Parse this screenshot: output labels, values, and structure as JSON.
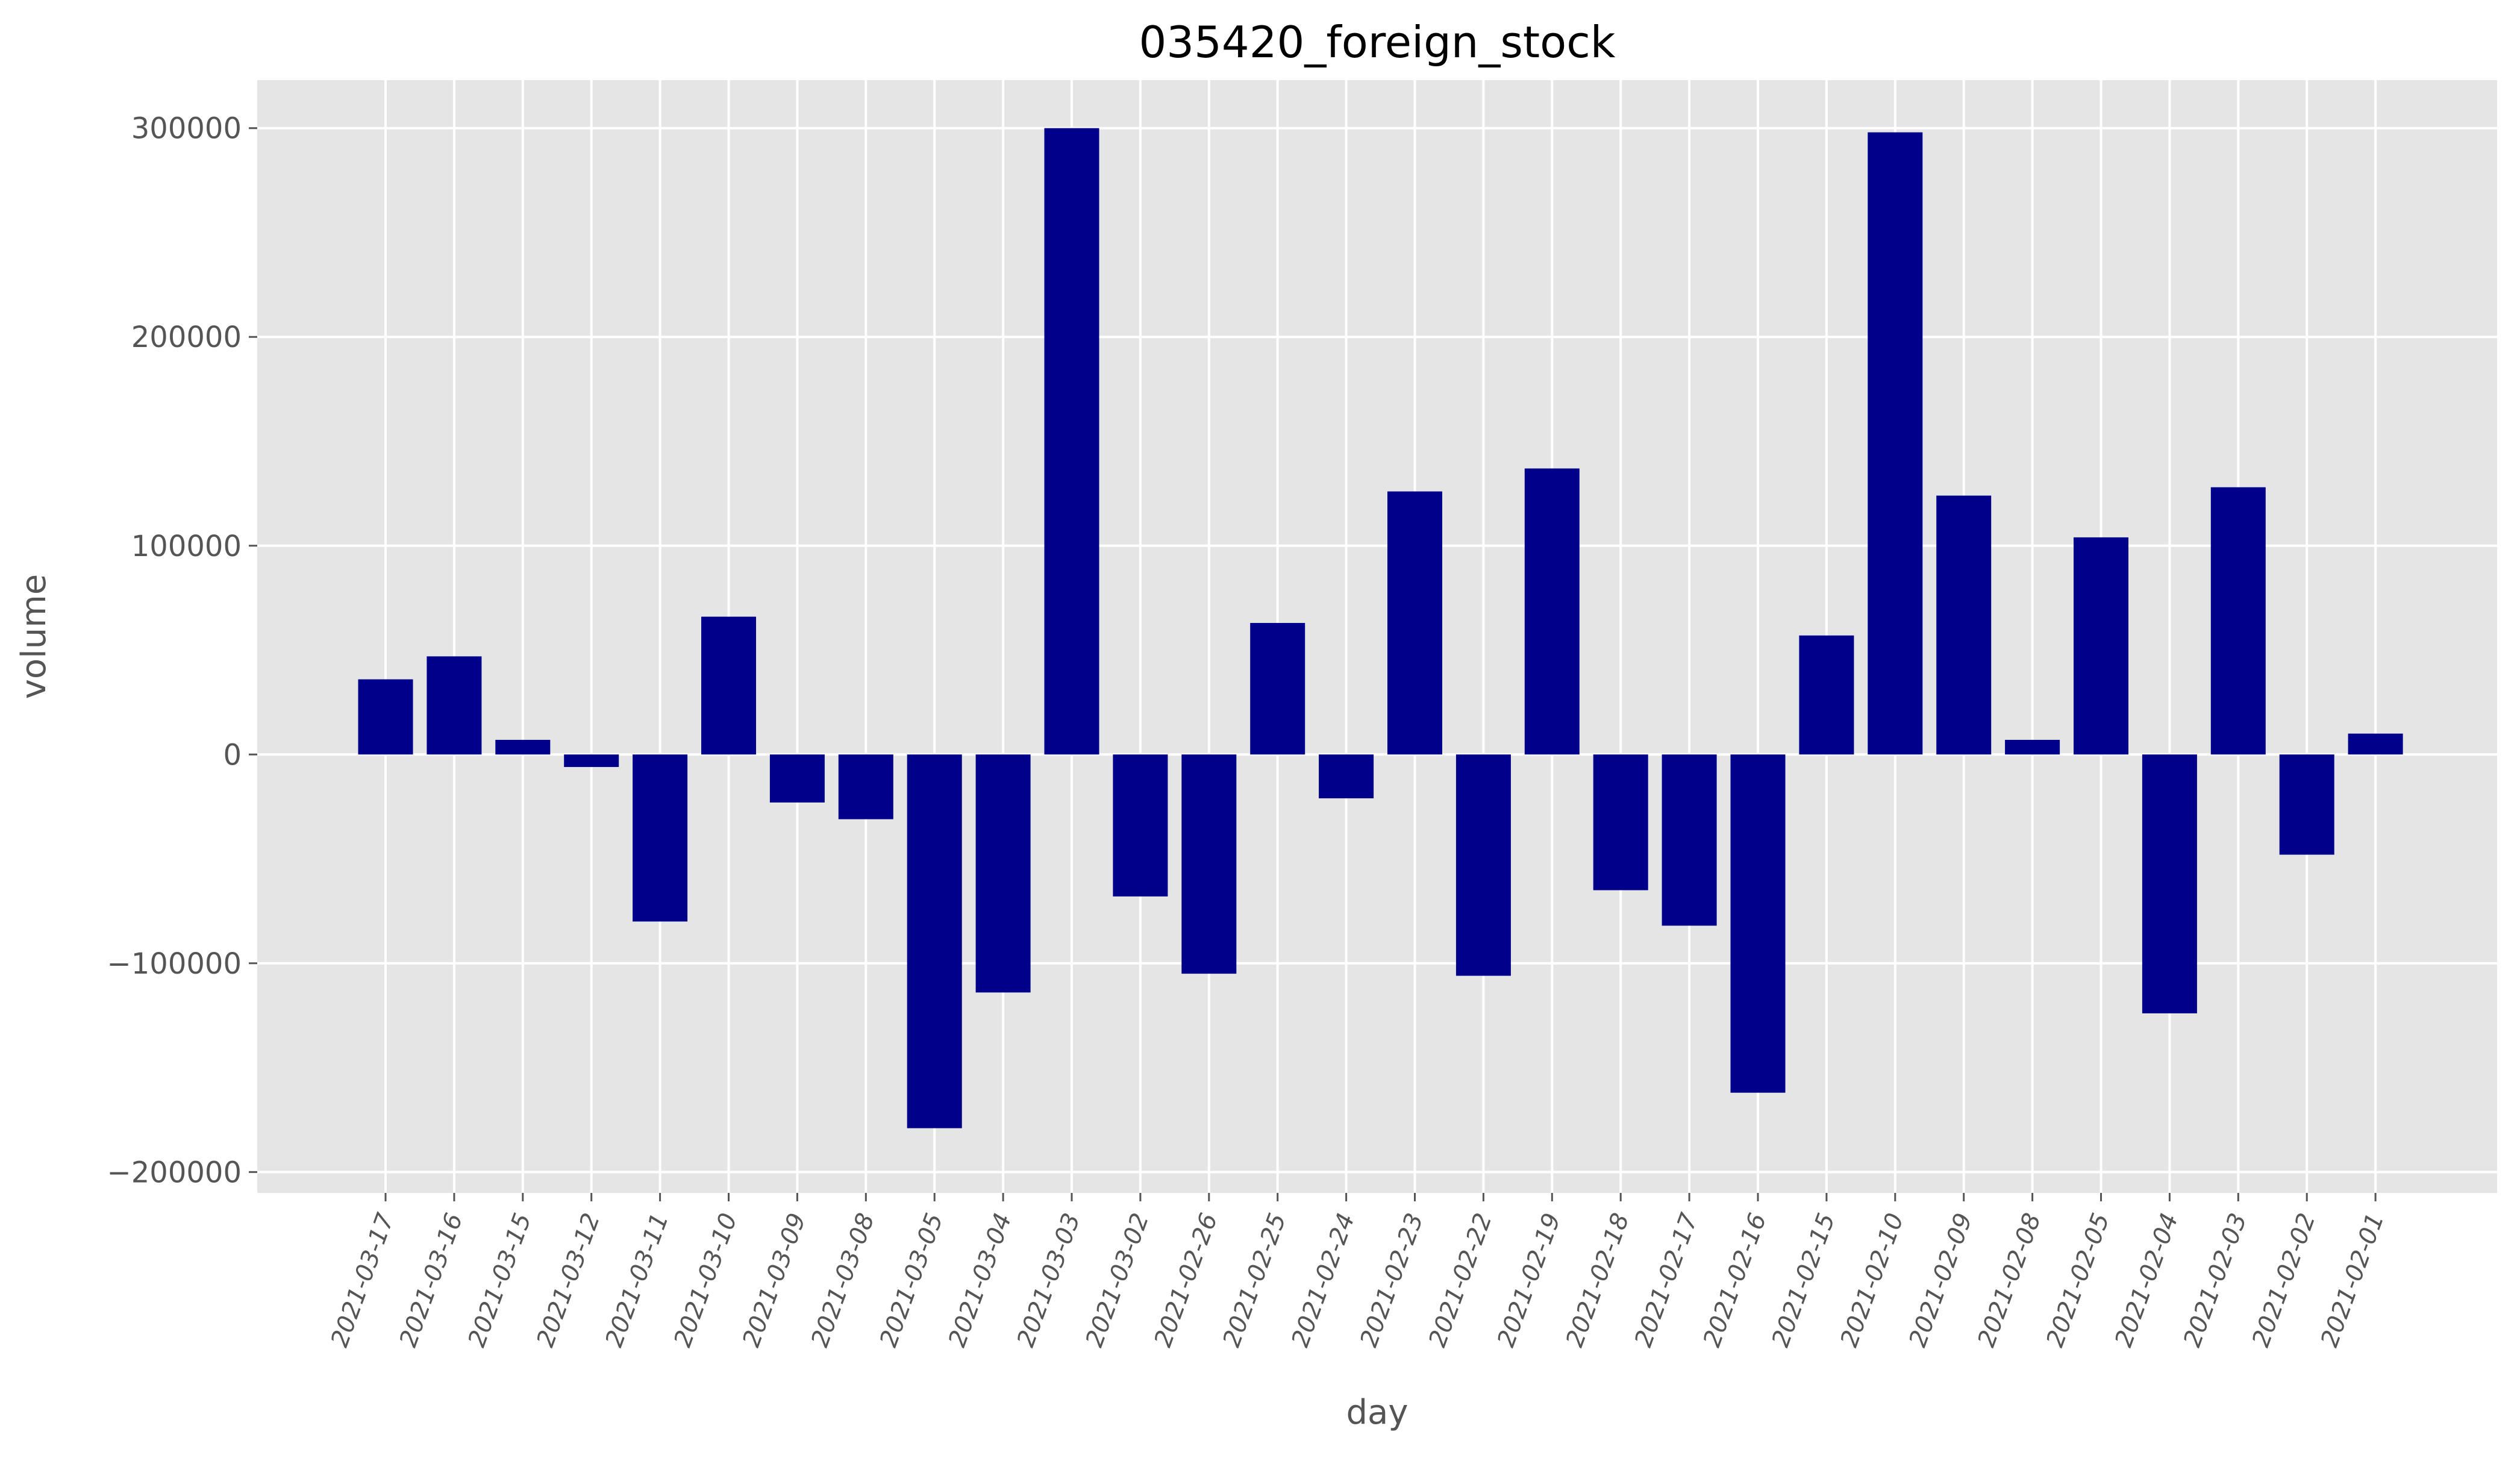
{
  "chart_data": {
    "type": "bar",
    "title": "035420_foreign_stock",
    "xlabel": "day",
    "ylabel": "volume",
    "ylim": [
      -210000,
      323000
    ],
    "yticks": [
      -200000,
      -100000,
      0,
      100000,
      200000,
      300000
    ],
    "ytick_labels": [
      "−200000",
      "−100000",
      "0",
      "100000",
      "200000",
      "300000"
    ],
    "grid": true,
    "categories": [
      "2021-03-17",
      "2021-03-16",
      "2021-03-15",
      "2021-03-12",
      "2021-03-11",
      "2021-03-10",
      "2021-03-09",
      "2021-03-08",
      "2021-03-05",
      "2021-03-04",
      "2021-03-03",
      "2021-03-02",
      "2021-02-26",
      "2021-02-25",
      "2021-02-24",
      "2021-02-23",
      "2021-02-22",
      "2021-02-19",
      "2021-02-18",
      "2021-02-17",
      "2021-02-16",
      "2021-02-15",
      "2021-02-10",
      "2021-02-09",
      "2021-02-08",
      "2021-02-05",
      "2021-02-04",
      "2021-02-03",
      "2021-02-02",
      "2021-02-01"
    ],
    "values": [
      36000,
      47000,
      7000,
      -6000,
      -80000,
      66000,
      -23000,
      -31000,
      -179000,
      -114000,
      300000,
      -68000,
      -105000,
      63000,
      -21000,
      126000,
      -106000,
      137000,
      -65000,
      -82000,
      -162000,
      57000,
      298000,
      124000,
      7000,
      104000,
      -124000,
      128000,
      -48000,
      10000
    ],
    "bar_color": "#00008b",
    "background_color": "#e5e5e5",
    "grid_color": "#ffffff"
  }
}
